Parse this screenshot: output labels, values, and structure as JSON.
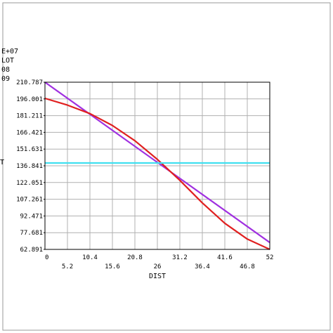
{
  "header_info": {
    "lines": [
      "E+07",
      "LOT",
      "08",
      "09"
    ]
  },
  "colors": {
    "border": "#9a9a9a",
    "grid": "#b0b0b0",
    "red": "#e02020",
    "purple": "#a030e0",
    "cyan": "#40e0f0"
  },
  "chart_data": {
    "type": "line",
    "xlabel": "DIST",
    "ylabel": "T",
    "xlim": [
      0,
      52
    ],
    "ylim": [
      62.891,
      210.787
    ],
    "x_ticks_top": [
      "0",
      "10.4",
      "20.8",
      "31.2",
      "41.6",
      "52"
    ],
    "x_ticks_bottom": [
      "5.2",
      "15.6",
      "26",
      "36.4",
      "46.8"
    ],
    "x_tick_values_top": [
      0,
      10.4,
      20.8,
      31.2,
      41.6,
      52
    ],
    "x_tick_values_bottom": [
      5.2,
      15.6,
      26,
      36.4,
      46.8
    ],
    "y_ticks": [
      "210.787",
      "196.001",
      "181.211",
      "166.421",
      "151.631",
      "136.841",
      "122.051",
      "107.261",
      "92.471",
      "77.681",
      "62.891"
    ],
    "y_tick_values": [
      210.787,
      196.001,
      181.211,
      166.421,
      151.631,
      136.841,
      122.051,
      107.261,
      92.471,
      77.681,
      62.891
    ],
    "grid": true,
    "series": [
      {
        "color": "#a030e0",
        "x": [
          0,
          52
        ],
        "y": [
          210.787,
          69.0
        ]
      },
      {
        "color": "#e02020",
        "x": [
          0,
          5.2,
          10.4,
          15.6,
          20.8,
          26,
          31.2,
          36.4,
          41.6,
          46.8,
          52
        ],
        "y": [
          196.5,
          190.5,
          183.0,
          172.5,
          159.0,
          142.5,
          124.0,
          104.0,
          86.0,
          72.0,
          62.891
        ]
      },
      {
        "color": "#40e0f0",
        "x": [
          0,
          52
        ],
        "y": [
          139.3,
          139.3
        ]
      }
    ]
  }
}
